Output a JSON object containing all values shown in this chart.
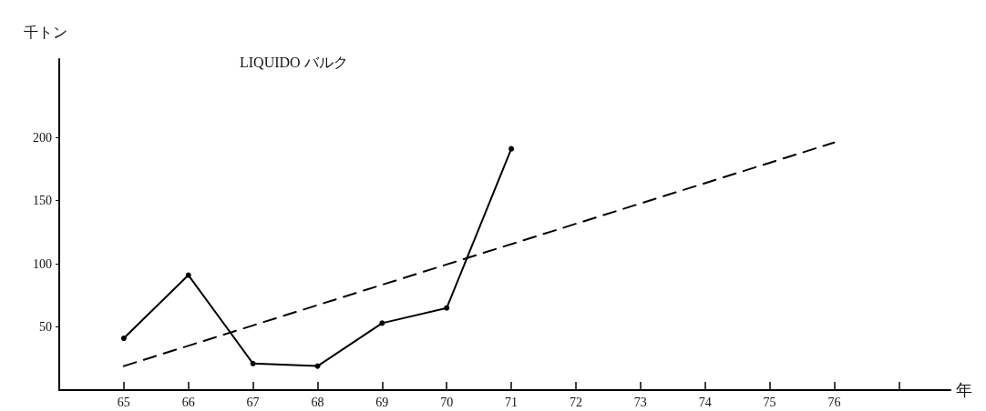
{
  "chart_data": {
    "type": "line",
    "title": "LIQUIDO バルク",
    "xlabel": "年",
    "ylabel": "千トン",
    "xlim": [
      64,
      77.8
    ],
    "xticks": [
      65,
      {
        "value": 66,
        "label": "66"
      },
      67,
      68,
      69,
      70,
      71,
      72,
      73,
      74,
      75,
      76,
      {
        "value": 77,
        "label": null
      }
    ],
    "ylim": [
      0,
      262
    ],
    "yticks": [
      50,
      100,
      150,
      200
    ],
    "grid": false,
    "tick_labels": "xy",
    "series": [
      {
        "color": "#000000",
        "x": [
          65,
          66,
          67,
          68,
          69,
          70,
          71
        ],
        "values": [
          41,
          91,
          21,
          19,
          53,
          65,
          191
        ],
        "line_style": "solid",
        "marker": "circle"
      },
      {
        "type": "line",
        "color": "#000000",
        "x": [
          65,
          76
        ],
        "values": [
          19,
          196
        ],
        "line_style": "dashed",
        "marker": "none"
      }
    ]
  }
}
